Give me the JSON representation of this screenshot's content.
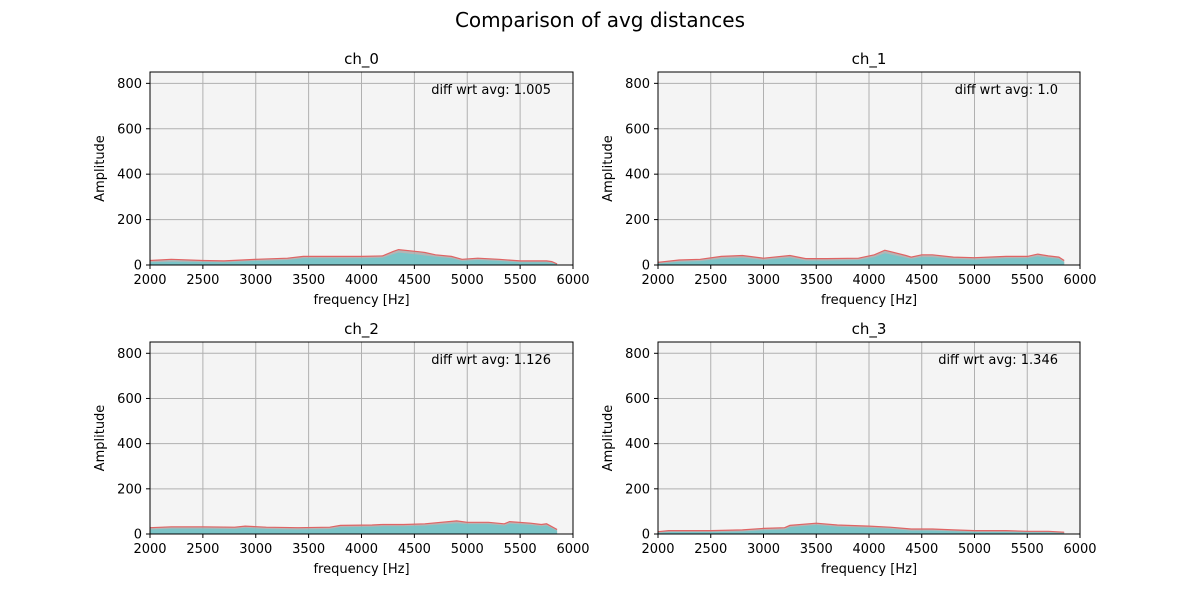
{
  "figure": {
    "title": "Comparison of avg distances"
  },
  "chart_data": [
    {
      "type": "area",
      "title": "ch_0",
      "xlabel": "frequency [Hz]",
      "ylabel": "Amplitude",
      "xlim": [
        2000,
        6000
      ],
      "ylim": [
        0,
        850
      ],
      "xticks": [
        2000,
        2500,
        3000,
        3500,
        4000,
        4500,
        5000,
        5500,
        6000
      ],
      "yticks": [
        0,
        200,
        400,
        600,
        800
      ],
      "grid": true,
      "annotation": "diff wrt avg: 1.005",
      "series": [
        {
          "values": [
            [
              2000,
              20
            ],
            [
              2200,
              25
            ],
            [
              2500,
              20
            ],
            [
              2700,
              18
            ],
            [
              3000,
              25
            ],
            [
              3300,
              30
            ],
            [
              3450,
              38
            ],
            [
              3700,
              38
            ],
            [
              4000,
              38
            ],
            [
              4200,
              40
            ],
            [
              4300,
              60
            ],
            [
              4350,
              68
            ],
            [
              4550,
              58
            ],
            [
              4600,
              55
            ],
            [
              4700,
              45
            ],
            [
              4850,
              38
            ],
            [
              4950,
              25
            ],
            [
              5100,
              30
            ],
            [
              5300,
              25
            ],
            [
              5500,
              18
            ],
            [
              5750,
              18
            ],
            [
              5800,
              15
            ],
            [
              5850,
              5
            ]
          ]
        },
        {
          "values": [
            [
              2000,
              12
            ],
            [
              2200,
              15
            ],
            [
              2500,
              13
            ],
            [
              2700,
              12
            ],
            [
              3000,
              18
            ],
            [
              3300,
              22
            ],
            [
              3450,
              30
            ],
            [
              3700,
              30
            ],
            [
              4000,
              30
            ],
            [
              4200,
              32
            ],
            [
              4300,
              48
            ],
            [
              4350,
              55
            ],
            [
              4550,
              45
            ],
            [
              4600,
              42
            ],
            [
              4700,
              36
            ],
            [
              4850,
              30
            ],
            [
              4950,
              18
            ],
            [
              5100,
              22
            ],
            [
              5300,
              18
            ],
            [
              5500,
              12
            ],
            [
              5750,
              12
            ],
            [
              5800,
              10
            ],
            [
              5850,
              3
            ]
          ]
        }
      ]
    },
    {
      "type": "area",
      "title": "ch_1",
      "xlabel": "frequency [Hz]",
      "ylabel": "Amplitude",
      "xlim": [
        2000,
        6000
      ],
      "ylim": [
        0,
        850
      ],
      "xticks": [
        2000,
        2500,
        3000,
        3500,
        4000,
        4500,
        5000,
        5500,
        6000
      ],
      "yticks": [
        0,
        200,
        400,
        600,
        800
      ],
      "grid": true,
      "annotation": "diff wrt avg: 1.0",
      "series": [
        {
          "values": [
            [
              2000,
              12
            ],
            [
              2200,
              22
            ],
            [
              2400,
              25
            ],
            [
              2600,
              38
            ],
            [
              2800,
              42
            ],
            [
              3000,
              30
            ],
            [
              3250,
              42
            ],
            [
              3400,
              28
            ],
            [
              3600,
              28
            ],
            [
              3900,
              30
            ],
            [
              4050,
              45
            ],
            [
              4150,
              65
            ],
            [
              4350,
              42
            ],
            [
              4400,
              35
            ],
            [
              4500,
              45
            ],
            [
              4600,
              45
            ],
            [
              4800,
              35
            ],
            [
              5000,
              32
            ],
            [
              5300,
              38
            ],
            [
              5500,
              38
            ],
            [
              5600,
              48
            ],
            [
              5700,
              40
            ],
            [
              5800,
              35
            ],
            [
              5850,
              20
            ]
          ]
        },
        {
          "values": [
            [
              2000,
              6
            ],
            [
              2200,
              14
            ],
            [
              2400,
              17
            ],
            [
              2600,
              28
            ],
            [
              2800,
              32
            ],
            [
              3000,
              22
            ],
            [
              3250,
              32
            ],
            [
              3400,
              20
            ],
            [
              3600,
              20
            ],
            [
              3900,
              22
            ],
            [
              4050,
              35
            ],
            [
              4150,
              52
            ],
            [
              4350,
              32
            ],
            [
              4400,
              27
            ],
            [
              4500,
              35
            ],
            [
              4600,
              35
            ],
            [
              4800,
              27
            ],
            [
              5000,
              24
            ],
            [
              5300,
              30
            ],
            [
              5500,
              30
            ],
            [
              5600,
              38
            ],
            [
              5700,
              32
            ],
            [
              5800,
              27
            ],
            [
              5850,
              12
            ]
          ]
        }
      ]
    },
    {
      "type": "area",
      "title": "ch_2",
      "xlabel": "frequency [Hz]",
      "ylabel": "Amplitude",
      "xlim": [
        2000,
        6000
      ],
      "ylim": [
        0,
        850
      ],
      "xticks": [
        2000,
        2500,
        3000,
        3500,
        4000,
        4500,
        5000,
        5500,
        6000
      ],
      "yticks": [
        0,
        200,
        400,
        600,
        800
      ],
      "grid": true,
      "annotation": "diff wrt avg: 1.126",
      "series": [
        {
          "values": [
            [
              2000,
              28
            ],
            [
              2200,
              32
            ],
            [
              2500,
              32
            ],
            [
              2800,
              30
            ],
            [
              2900,
              35
            ],
            [
              3100,
              30
            ],
            [
              3400,
              28
            ],
            [
              3700,
              30
            ],
            [
              3800,
              38
            ],
            [
              4100,
              40
            ],
            [
              4200,
              42
            ],
            [
              4400,
              42
            ],
            [
              4600,
              45
            ],
            [
              4900,
              58
            ],
            [
              5000,
              52
            ],
            [
              5200,
              52
            ],
            [
              5350,
              45
            ],
            [
              5400,
              55
            ],
            [
              5600,
              48
            ],
            [
              5700,
              42
            ],
            [
              5750,
              45
            ],
            [
              5850,
              20
            ]
          ]
        },
        {
          "values": [
            [
              2000,
              20
            ],
            [
              2200,
              24
            ],
            [
              2500,
              24
            ],
            [
              2800,
              22
            ],
            [
              2900,
              27
            ],
            [
              3100,
              22
            ],
            [
              3400,
              20
            ],
            [
              3700,
              22
            ],
            [
              3800,
              30
            ],
            [
              4100,
              32
            ],
            [
              4200,
              34
            ],
            [
              4400,
              34
            ],
            [
              4600,
              37
            ],
            [
              4900,
              48
            ],
            [
              5000,
              44
            ],
            [
              5200,
              44
            ],
            [
              5350,
              37
            ],
            [
              5400,
              46
            ],
            [
              5600,
              40
            ],
            [
              5700,
              34
            ],
            [
              5750,
              37
            ],
            [
              5850,
              14
            ]
          ]
        }
      ]
    },
    {
      "type": "area",
      "title": "ch_3",
      "xlabel": "frequency [Hz]",
      "ylabel": "Amplitude",
      "xlim": [
        2000,
        6000
      ],
      "ylim": [
        0,
        850
      ],
      "xticks": [
        2000,
        2500,
        3000,
        3500,
        4000,
        4500,
        5000,
        5500,
        6000
      ],
      "yticks": [
        0,
        200,
        400,
        600,
        800
      ],
      "grid": true,
      "annotation": "diff wrt avg: 1.346",
      "series": [
        {
          "values": [
            [
              2000,
              10
            ],
            [
              2100,
              15
            ],
            [
              2500,
              15
            ],
            [
              2800,
              18
            ],
            [
              3000,
              25
            ],
            [
              3200,
              28
            ],
            [
              3250,
              38
            ],
            [
              3500,
              48
            ],
            [
              3700,
              40
            ],
            [
              4000,
              35
            ],
            [
              4200,
              30
            ],
            [
              4400,
              22
            ],
            [
              4600,
              22
            ],
            [
              4800,
              18
            ],
            [
              5000,
              15
            ],
            [
              5300,
              15
            ],
            [
              5500,
              12
            ],
            [
              5700,
              12
            ],
            [
              5850,
              8
            ]
          ]
        },
        {
          "values": [
            [
              2000,
              5
            ],
            [
              2100,
              9
            ],
            [
              2500,
              9
            ],
            [
              2800,
              11
            ],
            [
              3000,
              17
            ],
            [
              3200,
              20
            ],
            [
              3250,
              30
            ],
            [
              3500,
              40
            ],
            [
              3700,
              32
            ],
            [
              4000,
              28
            ],
            [
              4200,
              23
            ],
            [
              4400,
              15
            ],
            [
              4600,
              15
            ],
            [
              4800,
              12
            ],
            [
              5000,
              9
            ],
            [
              5300,
              9
            ],
            [
              5500,
              7
            ],
            [
              5700,
              7
            ],
            [
              5850,
              4
            ]
          ]
        }
      ]
    }
  ],
  "colors": {
    "axes_bg": "#f4f4f4",
    "grid": "#b0b0b0",
    "outer_line": "#e06464",
    "outer_fill": "#a9a9a9",
    "inner_fill": "#6cc8cc"
  }
}
